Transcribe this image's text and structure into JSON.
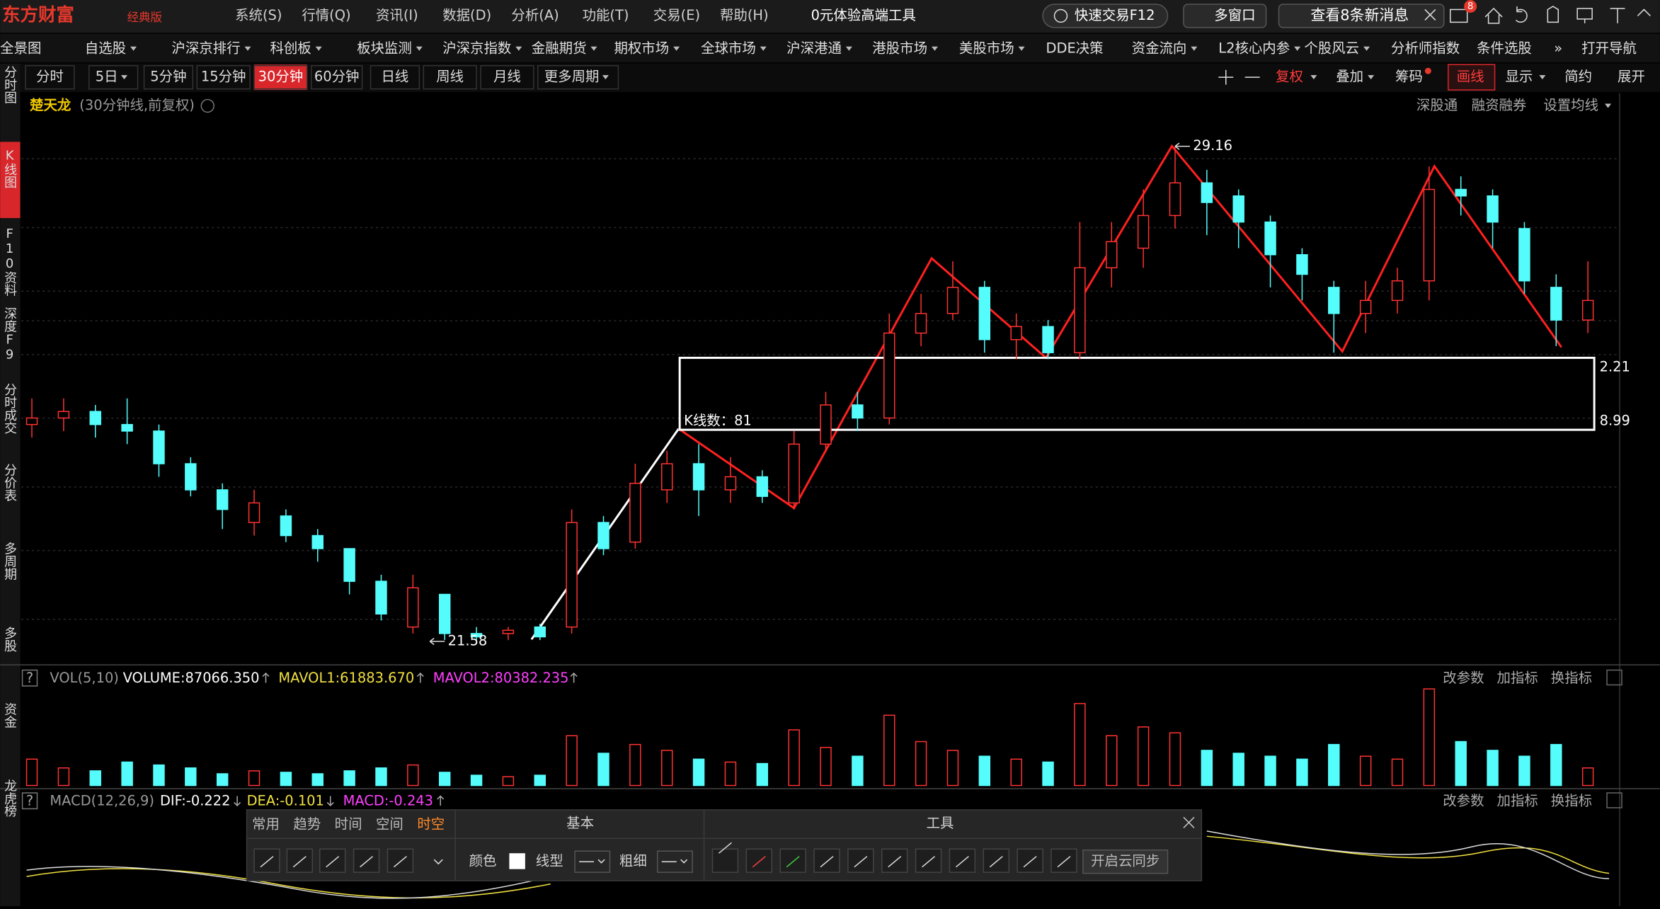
{
  "header": {
    "logo": "东方财富",
    "edition": "经典版",
    "menu": [
      "系统(S)",
      "行情(Q)",
      "资讯(I)",
      "数据(D)",
      "分析(A)",
      "功能(T)",
      "交易(E)",
      "帮助(H)"
    ],
    "promo": "0元体验高端工具",
    "quick_trade": "快速交易F12",
    "multi_window": "多窗口",
    "messages": "查看8条新消息",
    "badge": "8"
  },
  "nav": [
    "全景图",
    "自选股",
    "沪深京排行",
    "科创板",
    "板块监测",
    "沪深京指数",
    "金融期货",
    "期权市场",
    "全球市场",
    "沪深港通",
    "港股市场",
    "美股市场",
    "DDE决策",
    "资金流向",
    "L2核心内参",
    "个股风云",
    "分析师指数",
    "条件选股",
    "»",
    "打开导航"
  ],
  "periods": [
    "分时",
    "5日",
    "5分钟",
    "15分钟",
    "30分钟",
    "60分钟",
    "日线",
    "周线",
    "月线",
    "更多周期"
  ],
  "tools_right": [
    "复权",
    "叠加",
    "筹码",
    "画线",
    "显示",
    "简约",
    "展开"
  ],
  "sidebar": [
    "分时图",
    "K线图",
    "F10资料",
    "深度F9",
    "分时成交",
    "分价表",
    "多周期",
    "多股",
    "资金",
    "龙虎榜"
  ],
  "chart": {
    "stock": "楚天龙",
    "period_desc": "(30分钟线,前复权)",
    "links": [
      "深股通",
      "融资融券",
      "设置均线"
    ],
    "kline": {
      "ylim": [
        21.27,
        29.86
      ],
      "up_color": "#ff3232",
      "down_color": "#54fcfc",
      "high_mark": 29.16,
      "low_mark": 21.58,
      "bar_count": "K线数：81",
      "box_labels": [
        "2.21",
        "8.99"
      ],
      "candles": [
        [
          24.9,
          25.0,
          25.3,
          24.7
        ],
        [
          25.0,
          25.1,
          25.3,
          24.8
        ],
        [
          25.1,
          24.9,
          25.2,
          24.7
        ],
        [
          24.9,
          24.8,
          25.3,
          24.6
        ],
        [
          24.8,
          24.3,
          24.9,
          24.1
        ],
        [
          24.3,
          23.9,
          24.4,
          23.8
        ],
        [
          23.9,
          23.6,
          24.0,
          23.3
        ],
        [
          23.4,
          23.7,
          23.9,
          23.2
        ],
        [
          23.5,
          23.2,
          23.6,
          23.1
        ],
        [
          23.2,
          23.0,
          23.3,
          22.8
        ],
        [
          23.0,
          22.5,
          23.0,
          22.3
        ],
        [
          22.5,
          22.0,
          22.6,
          21.9
        ],
        [
          21.8,
          22.4,
          22.6,
          21.7
        ],
        [
          22.3,
          21.7,
          22.3,
          21.6
        ],
        [
          21.7,
          21.65,
          21.8,
          21.6
        ],
        [
          21.7,
          21.75,
          21.8,
          21.6
        ],
        [
          21.8,
          21.65,
          21.85,
          21.6
        ],
        [
          21.8,
          23.4,
          23.6,
          21.7
        ],
        [
          23.4,
          23.0,
          23.5,
          22.9
        ],
        [
          23.1,
          24.0,
          24.3,
          23.0
        ],
        [
          23.9,
          24.3,
          24.5,
          23.7
        ],
        [
          24.3,
          23.9,
          24.6,
          23.5
        ],
        [
          23.9,
          24.1,
          24.4,
          23.7
        ],
        [
          24.1,
          23.8,
          24.2,
          23.7
        ],
        [
          23.7,
          24.6,
          24.8,
          23.6
        ],
        [
          24.6,
          25.2,
          25.4,
          24.5
        ],
        [
          25.2,
          25.0,
          25.4,
          24.8
        ],
        [
          25.0,
          26.3,
          26.6,
          24.9
        ],
        [
          26.3,
          26.6,
          26.9,
          26.1
        ],
        [
          26.6,
          27.0,
          27.4,
          26.5
        ],
        [
          27.0,
          26.2,
          27.1,
          26.0
        ],
        [
          26.2,
          26.4,
          26.6,
          25.9
        ],
        [
          26.4,
          26.0,
          26.5,
          25.9
        ],
        [
          26.0,
          27.3,
          28.0,
          25.9
        ],
        [
          27.3,
          27.7,
          28.0,
          27.0
        ],
        [
          27.6,
          28.1,
          28.5,
          27.3
        ],
        [
          28.1,
          28.6,
          29.16,
          27.9
        ],
        [
          28.6,
          28.3,
          28.8,
          27.8
        ],
        [
          28.4,
          28.0,
          28.5,
          27.6
        ],
        [
          28.0,
          27.5,
          28.1,
          27.0
        ],
        [
          27.5,
          27.2,
          27.6,
          26.8
        ],
        [
          27.0,
          26.6,
          27.1,
          26.0
        ],
        [
          26.6,
          26.8,
          27.1,
          26.3
        ],
        [
          26.8,
          27.1,
          27.3,
          26.6
        ],
        [
          27.1,
          28.5,
          28.85,
          26.8
        ],
        [
          28.5,
          28.4,
          28.7,
          28.1
        ],
        [
          28.4,
          28.0,
          28.5,
          27.6
        ],
        [
          27.9,
          27.1,
          28.0,
          26.9
        ],
        [
          27.0,
          26.5,
          27.2,
          26.1
        ],
        [
          26.5,
          26.8,
          27.4,
          26.3
        ]
      ],
      "vol_ylim": [
        0,
        340000
      ],
      "volumes": [
        90000,
        60000,
        50000,
        80000,
        70000,
        60000,
        40000,
        50000,
        45000,
        40000,
        50000,
        60000,
        70000,
        45000,
        35000,
        30000,
        35000,
        170000,
        110000,
        140000,
        120000,
        90000,
        80000,
        75000,
        190000,
        130000,
        100000,
        240000,
        150000,
        120000,
        100000,
        90000,
        80000,
        280000,
        170000,
        200000,
        180000,
        120000,
        110000,
        100000,
        90000,
        140000,
        100000,
        90000,
        330000,
        150000,
        120000,
        100000,
        140000,
        60000
      ]
    }
  },
  "volume_panel": {
    "help": "?",
    "name": "VOL(5,10)",
    "volume": "VOLUME:87066.350",
    "mavol1": "MAVOL1:61883.670",
    "mavol2": "MAVOL2:80382.235",
    "actions": [
      "改参数",
      "加指标",
      "换指标"
    ]
  },
  "macd_panel": {
    "help": "?",
    "name": "MACD(12,26,9)",
    "dif": "DIF:-0.222",
    "dea": "DEA:-0.101",
    "macd": "MACD:-0.243",
    "actions": [
      "改参数",
      "加指标",
      "换指标"
    ]
  },
  "draw_toolbar": {
    "tabs": [
      "常用",
      "趋势",
      "时间",
      "空间",
      "时空"
    ],
    "basic": "基本",
    "color": "颜色",
    "line_type": "线型",
    "thickness": "粗细",
    "tools": "工具",
    "sync": "开启云同步"
  }
}
